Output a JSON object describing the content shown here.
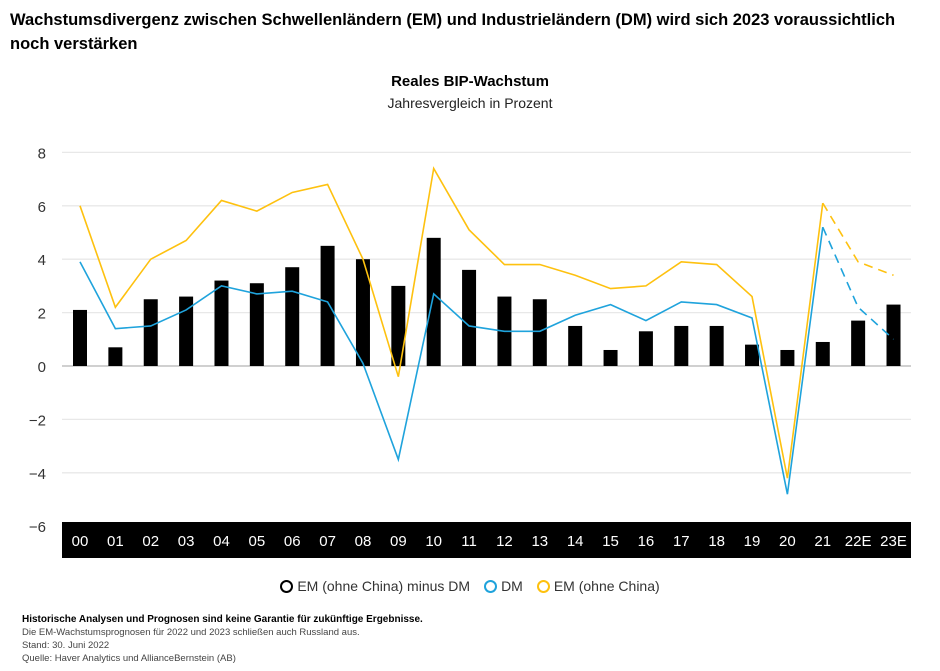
{
  "headline": "Wachstumsdivergenz zwischen Schwellenländern (EM) und Industrieländern (DM) wird sich 2023 voraussichtlich noch verstärken",
  "chart_data": {
    "type": "bar+line",
    "title": "Reales BIP-Wachstum",
    "subtitle": "Jahresvergleich in Prozent",
    "categories": [
      "00",
      "01",
      "02",
      "03",
      "04",
      "05",
      "06",
      "07",
      "08",
      "09",
      "10",
      "11",
      "12",
      "13",
      "14",
      "15",
      "16",
      "17",
      "18",
      "19",
      "20",
      "21",
      "22E",
      "23E"
    ],
    "ylim": [
      -6,
      8
    ],
    "yticks": [
      8,
      6,
      4,
      2,
      0,
      -2,
      -4,
      -6
    ],
    "ytick_labels": [
      "8",
      "6",
      "4",
      "2",
      "0",
      "−2",
      "−4",
      "−6"
    ],
    "grid": true,
    "legend_position": "bottom",
    "forecast_categories": [
      "22E",
      "23E"
    ],
    "series": [
      {
        "name": "EM (ohne China) minus DM",
        "kind": "bar",
        "color": "#000000",
        "values": [
          2.1,
          0.7,
          2.5,
          2.6,
          3.2,
          3.1,
          3.7,
          4.5,
          4.0,
          3.0,
          4.8,
          3.6,
          2.6,
          2.5,
          1.5,
          0.6,
          1.3,
          1.5,
          1.5,
          0.8,
          0.6,
          0.9,
          1.7,
          2.3
        ]
      },
      {
        "name": "DM",
        "kind": "line",
        "color": "#1fa3dc",
        "values": [
          3.9,
          1.4,
          1.5,
          2.1,
          3.0,
          2.7,
          2.8,
          2.4,
          0.1,
          -3.5,
          2.7,
          1.5,
          1.3,
          1.3,
          1.9,
          2.3,
          1.7,
          2.4,
          2.3,
          1.8,
          -4.8,
          5.2,
          2.2,
          1.0
        ]
      },
      {
        "name": "EM (ohne China)",
        "kind": "line",
        "color": "#fec10f",
        "values": [
          6.0,
          2.2,
          4.0,
          4.7,
          6.2,
          5.8,
          6.5,
          6.8,
          4.0,
          -0.4,
          7.4,
          5.1,
          3.8,
          3.8,
          3.4,
          2.9,
          3.0,
          3.9,
          3.8,
          2.6,
          -4.2,
          6.1,
          3.9,
          3.4
        ]
      }
    ]
  },
  "footer": {
    "disclaimer": "Historische Analysen und Prognosen sind keine Garantie für zukünftige Ergebnisse.",
    "note": "Die EM-Wachstumsprognosen für 2022 und 2023 schließen auch Russland aus.",
    "date": "Stand: 30. Juni 2022",
    "source": "Quelle: Haver Analytics und AllianceBernstein (AB)"
  }
}
